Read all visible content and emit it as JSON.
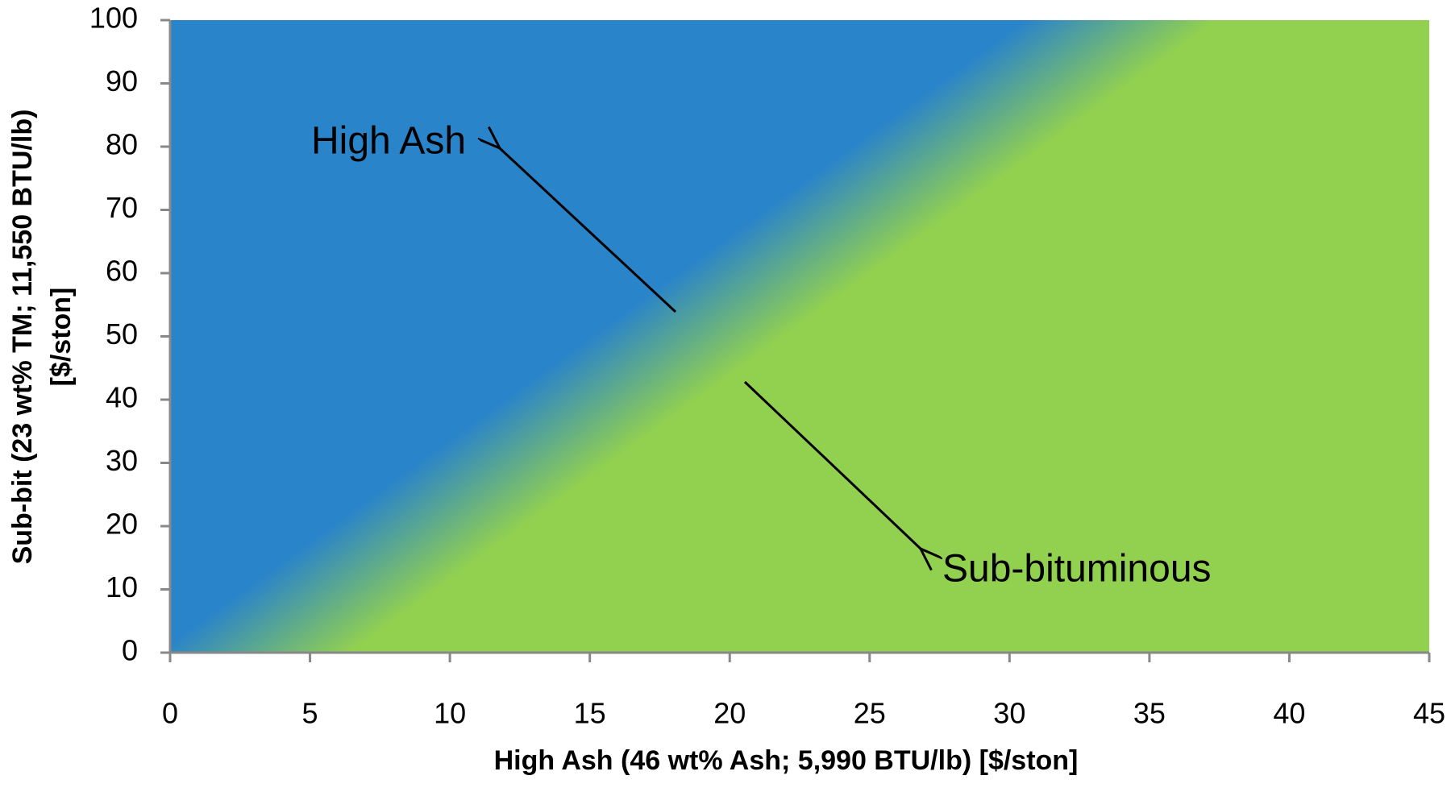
{
  "chart_data": {
    "type": "region",
    "xlabel": "High Ash (46 wt% Ash; 5,990 BTU/lb) [$/ston]",
    "ylabel": [
      "Sub-bit (23 wt% TM; 11,550 BTU/lb)",
      "[$/ston]"
    ],
    "xlim": [
      0,
      45
    ],
    "xticks": [
      0,
      5,
      10,
      15,
      20,
      25,
      30,
      35,
      40,
      45
    ],
    "ylim": [
      0,
      100
    ],
    "yticks": [
      0,
      10,
      20,
      30,
      40,
      50,
      60,
      70,
      80,
      90,
      100
    ],
    "boundary": {
      "x": [
        3,
        34
      ],
      "y": [
        0,
        100
      ]
    },
    "regions": [
      {
        "name": "High Ash",
        "color": "#2a84c9"
      },
      {
        "name": "Sub-bituminous",
        "color": "#92d050"
      }
    ]
  }
}
